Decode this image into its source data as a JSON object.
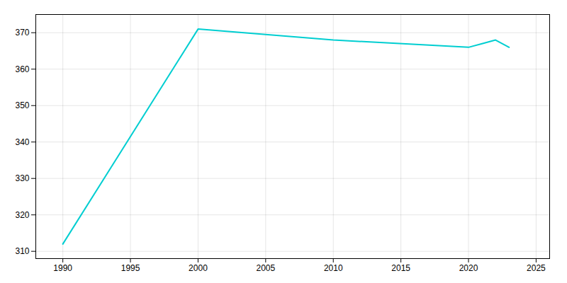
{
  "chart_data": {
    "type": "line",
    "x": [
      1990,
      2000,
      2010,
      2020,
      2021,
      2022,
      2023
    ],
    "values": [
      312,
      371,
      368,
      366,
      367,
      368,
      366
    ],
    "color": "#00CED1",
    "xlim": [
      1988,
      2026
    ],
    "ylim": [
      308,
      375
    ],
    "xticks": [
      1990,
      1995,
      2000,
      2005,
      2010,
      2015,
      2020,
      2025
    ],
    "yticks": [
      310,
      320,
      330,
      340,
      350,
      360,
      370
    ],
    "grid": true
  }
}
